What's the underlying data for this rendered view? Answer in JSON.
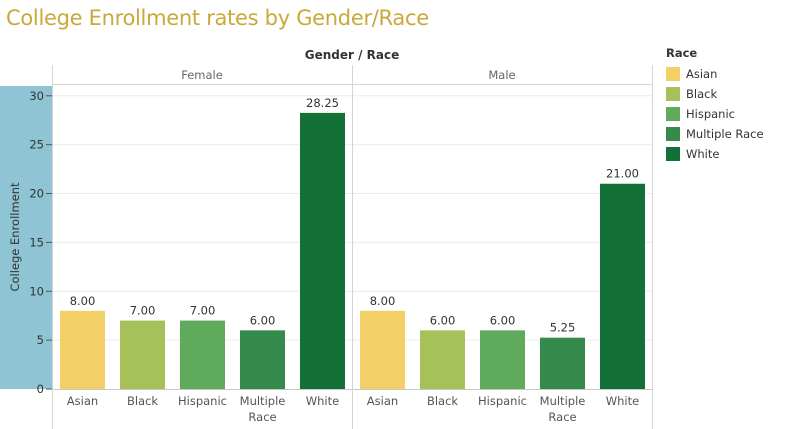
{
  "chart_data": {
    "type": "bar",
    "title": "College Enrollment rates by Gender/Race",
    "column_header": "Gender / Race",
    "ylabel": "College Enrollment",
    "ylim": [
      0,
      31
    ],
    "yticks": [
      0,
      5,
      10,
      15,
      20,
      25,
      30
    ],
    "grid": true,
    "legend_position": "right",
    "legend_title": "Race",
    "categories": [
      "Asian",
      "Black",
      "Hispanic",
      "Multiple Race",
      "White"
    ],
    "category_labels": [
      [
        "Asian"
      ],
      [
        "Black"
      ],
      [
        "Hispanic"
      ],
      [
        "Multiple",
        "Race"
      ],
      [
        "White"
      ]
    ],
    "colors": {
      "Asian": "#f3d067",
      "Black": "#a6c05a",
      "Hispanic": "#60aa5b",
      "Multiple Race": "#348b4b",
      "White": "#137137"
    },
    "panels": [
      {
        "name": "Female",
        "values": [
          8.0,
          7.0,
          7.0,
          6.0,
          28.25
        ],
        "value_labels": [
          "8.00",
          "7.00",
          "7.00",
          "6.00",
          "28.25"
        ]
      },
      {
        "name": "Male",
        "values": [
          8.0,
          6.0,
          6.0,
          5.25,
          21.0
        ],
        "value_labels": [
          "8.00",
          "6.00",
          "6.00",
          "5.25",
          "21.00"
        ]
      }
    ]
  }
}
